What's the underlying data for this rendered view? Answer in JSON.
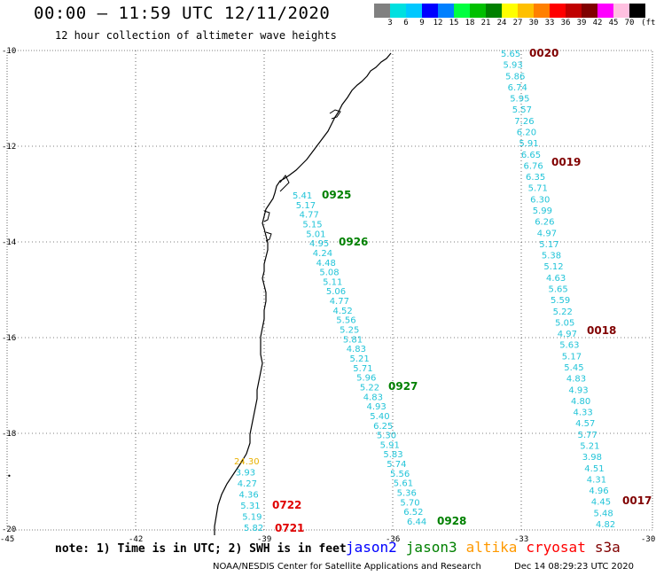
{
  "header": {
    "title": "00:00 – 11:59 UTC 12/11/2020",
    "subtitle": "12 hour collection of altimeter wave heights"
  },
  "color_scale": {
    "unit": "(ft)",
    "colors": [
      "#808080",
      "#00e0e0",
      "#00c8ff",
      "#0000ff",
      "#0080ff",
      "#00ff40",
      "#00c000",
      "#008000",
      "#ffff00",
      "#ffc000",
      "#ff8000",
      "#ff0000",
      "#c00000",
      "#800000",
      "#ff00ff",
      "#ffc0e0",
      "#000000"
    ],
    "labels": [
      "3",
      "6",
      "9",
      "12",
      "15",
      "18",
      "21",
      "24",
      "27",
      "30",
      "33",
      "36",
      "39",
      "42",
      "45",
      "70"
    ]
  },
  "axes": {
    "lat_labels": [
      "-10",
      "-12",
      "-14",
      "-16",
      "-18",
      "-20"
    ],
    "lon_labels": [
      "-45",
      "-42",
      "-39",
      "-36",
      "-33",
      "-30"
    ]
  },
  "tracks": [
    {
      "id": "track-right",
      "color": "#22c4d8",
      "values": [
        "5.65",
        "5.93",
        "5.86",
        "6.74",
        "5.95",
        "5.57",
        "7.26",
        "6.20",
        "5.91",
        "6.65",
        "6.76",
        "6.35",
        "5.71",
        "6.30",
        "5.99",
        "6.26",
        "4.97",
        "5.17",
        "5.38",
        "5.12",
        "4.63",
        "5.65",
        "5.59",
        "5.22",
        "5.05",
        "4.97",
        "5.63",
        "5.17",
        "5.45",
        "4.83",
        "4.93",
        "4.80",
        "4.33",
        "4.57",
        "5.77",
        "5.21",
        "3.98",
        "4.51",
        "4.31",
        "4.96",
        "4.45",
        "5.48",
        "4.82"
      ]
    },
    {
      "id": "track-middle",
      "color": "#22c4d8",
      "values": [
        "5.41",
        "5.17",
        "4.77",
        "5.15",
        "5.01",
        "4.95",
        "4.24",
        "4.48",
        "5.08",
        "5.11",
        "5.06",
        "4.77",
        "4.52",
        "5.56",
        "5.25",
        "5.81",
        "4.83",
        "5.21",
        "5.71",
        "5.96",
        "5.22",
        "4.83",
        "4.93",
        "5.40",
        "6.25",
        "5.30",
        "5.91",
        "5.83",
        "5.74",
        "5.56",
        "5.61",
        "5.36",
        "5.70",
        "6.52",
        "6.44"
      ]
    },
    {
      "id": "track-coastal",
      "values": [
        {
          "v": "24.30",
          "color": "#e8b000"
        },
        {
          "v": "3.93",
          "color": "#22c4d8"
        },
        {
          "v": "4.27",
          "color": "#22c4d8"
        },
        {
          "v": "4.36",
          "color": "#22c4d8"
        },
        {
          "v": "5.31",
          "color": "#22c4d8"
        },
        {
          "v": "5.19",
          "color": "#22c4d8"
        },
        {
          "v": "5.82",
          "color": "#22c4d8"
        }
      ]
    }
  ],
  "time_labels": [
    {
      "text": "0020",
      "color": "#800000"
    },
    {
      "text": "0019",
      "color": "#800000"
    },
    {
      "text": "0018",
      "color": "#800000"
    },
    {
      "text": "0017",
      "color": "#800000"
    },
    {
      "text": "0925",
      "color": "#008000"
    },
    {
      "text": "0926",
      "color": "#008000"
    },
    {
      "text": "0927",
      "color": "#008000"
    },
    {
      "text": "0928",
      "color": "#008000"
    },
    {
      "text": "0722",
      "color": "#e00000"
    },
    {
      "text": "0721",
      "color": "#e00000"
    }
  ],
  "note": "note: 1) Time is in UTC; 2) SWH is in feet",
  "legend": [
    {
      "name": "jason2",
      "color": "#0000ff"
    },
    {
      "name": "jason3",
      "color": "#008000"
    },
    {
      "name": "altika",
      "color": "#ff9900"
    },
    {
      "name": "cryosat",
      "color": "#ff0000"
    },
    {
      "name": "s3a",
      "color": "#800000"
    }
  ],
  "footer": {
    "credit": "NOAA/NESDIS Center for Satellite Applications and Research",
    "timestamp": "Dec 14 08:29:23 UTC 2020"
  }
}
